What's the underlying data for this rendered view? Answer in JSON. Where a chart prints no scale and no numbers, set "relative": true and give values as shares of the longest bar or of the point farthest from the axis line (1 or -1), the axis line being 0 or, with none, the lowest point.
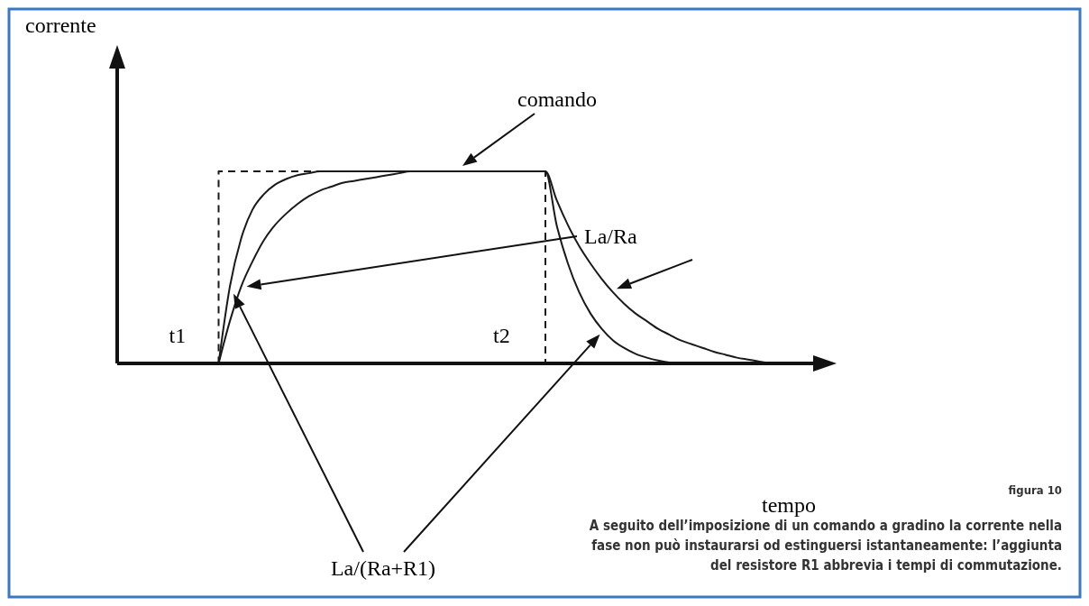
{
  "chart_data": {
    "type": "line",
    "relative": true,
    "categories": [
      null,
      null,
      null,
      null,
      null,
      null,
      null,
      null,
      null,
      null,
      null,
      null,
      null,
      null,
      null,
      null,
      null,
      null,
      null,
      null,
      null,
      null,
      null,
      null,
      null,
      null,
      null,
      null,
      null,
      null,
      null,
      null,
      null,
      null,
      null,
      null,
      null,
      null,
      null,
      null,
      null,
      null,
      null,
      null,
      null,
      null,
      null,
      null,
      null,
      null,
      null,
      null,
      null,
      null,
      null,
      null,
      null,
      null,
      null,
      null,
      null
    ],
    "series": [
      {
        "name": "comando",
        "type": "step",
        "line_style": "dashed",
        "color": "#1a1a1a",
        "values": [
          0,
          0,
          0,
          0,
          0,
          0,
          0,
          0,
          0,
          1,
          1,
          1,
          1,
          1,
          1,
          1,
          1,
          1,
          1,
          1,
          1,
          1,
          1,
          1,
          1,
          1,
          1,
          1,
          1,
          1,
          1,
          1,
          1,
          1,
          1,
          1,
          1,
          1,
          0,
          0,
          0,
          0,
          0,
          0,
          0,
          0,
          0,
          0,
          0,
          0,
          0,
          0,
          0,
          0,
          0,
          0,
          0,
          0,
          0,
          0,
          0
        ]
      },
      {
        "name": "La/Ra",
        "color": "#1a1a1a",
        "values": [
          null,
          null,
          null,
          null,
          null,
          null,
          null,
          null,
          null,
          0,
          0.22,
          0.4,
          0.53,
          0.64,
          0.72,
          0.78,
          0.83,
          0.87,
          0.9,
          0.92,
          0.94,
          0.95,
          0.96,
          0.97,
          0.98,
          0.99,
          1,
          1,
          1,
          1,
          1,
          1,
          1,
          1,
          1,
          1,
          1,
          1,
          1,
          0.85,
          0.72,
          0.61,
          0.52,
          0.44,
          0.37,
          0.31,
          0.26,
          0.22,
          0.18,
          0.15,
          0.12,
          0.1,
          0.08,
          0.06,
          0.045,
          0.03,
          0.02,
          0.01,
          0,
          null,
          null
        ]
      },
      {
        "name": "La/(Ra+R1)",
        "color": "#1a1a1a",
        "values": [
          null,
          null,
          null,
          null,
          null,
          null,
          null,
          null,
          null,
          0,
          0.4,
          0.65,
          0.8,
          0.88,
          0.93,
          0.96,
          0.98,
          0.99,
          1,
          1,
          1,
          1,
          1,
          1,
          1,
          1,
          1,
          1,
          1,
          1,
          1,
          1,
          1,
          1,
          1,
          1,
          1,
          1,
          1,
          0.72,
          0.52,
          0.37,
          0.26,
          0.18,
          0.12,
          0.08,
          0.05,
          0.03,
          0.015,
          0.005,
          0,
          null,
          null,
          null,
          null,
          null,
          null,
          null,
          null,
          null,
          null
        ]
      }
    ],
    "annotations": [
      "corrente",
      "tempo",
      "t1",
      "t2",
      "figura 10",
      "A seguito dell’imposizione di un comando a gradino la corrente nella fase non può instaurarsi od estinguersi istantaneamente: l’aggiunta del resistore R1 abbrevia i tempi di commutazione."
    ]
  }
}
